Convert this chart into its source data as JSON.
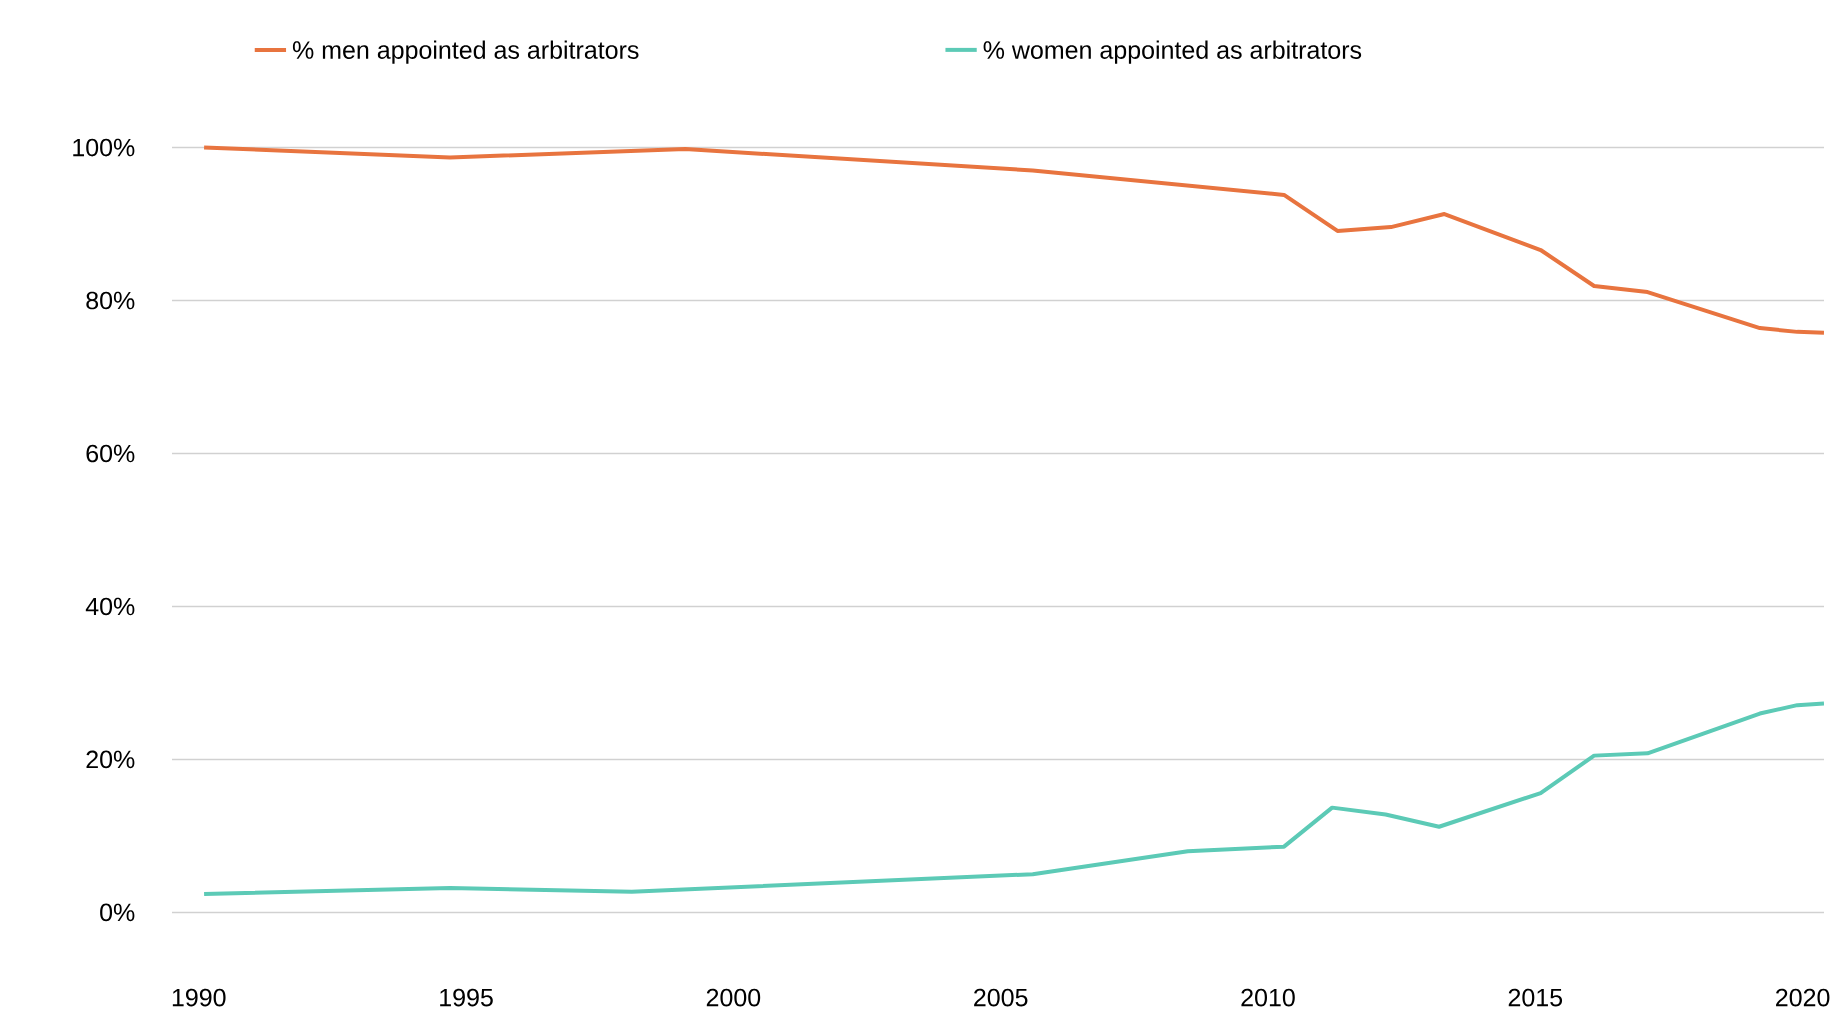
{
  "chart_data": {
    "type": "line",
    "legend": "top",
    "grid": "y",
    "line_style": "solid",
    "marker": "none",
    "xlim": [
      1989.5,
      2020.4
    ],
    "ylim": [
      0,
      100
    ],
    "xticks": [
      1990,
      1995,
      2000,
      2005,
      2010,
      2015,
      2020
    ],
    "yticks": [
      {
        "value": 0,
        "label": "0%"
      },
      {
        "value": 20,
        "label": "20%"
      },
      {
        "value": 40,
        "label": "40%"
      },
      {
        "value": 60,
        "label": "60%"
      },
      {
        "value": 80,
        "label": "80%"
      },
      {
        "value": 100,
        "label": "100%"
      }
    ],
    "series": [
      {
        "name": "% men appointed as arbitrators",
        "color": "#e8743f",
        "x": [
          1990.1,
          1994.7,
          1999.1,
          2005.6,
          2010.3,
          2011.3,
          2012.3,
          2013.3,
          2015.1,
          2016.1,
          2017.1,
          2019.2,
          2019.9,
          2020.4
        ],
        "values": [
          100,
          98.7,
          99.8,
          97.0,
          93.8,
          89.1,
          89.6,
          91.3,
          86.6,
          81.9,
          81.1,
          76.4,
          75.9,
          75.8
        ]
      },
      {
        "name": "% women appointed as arbitrators",
        "color": "#5ccab6",
        "x": [
          1990.1,
          1994.7,
          1998.1,
          2005.6,
          2008.5,
          2010.3,
          2011.2,
          2012.2,
          2013.2,
          2015.1,
          2016.1,
          2017.1,
          2019.2,
          2019.9,
          2020.4
        ],
        "values": [
          2.4,
          3.2,
          2.7,
          5.0,
          8.0,
          8.6,
          13.7,
          12.8,
          11.2,
          15.6,
          20.5,
          20.8,
          26.0,
          27.1,
          27.3
        ]
      }
    ]
  }
}
